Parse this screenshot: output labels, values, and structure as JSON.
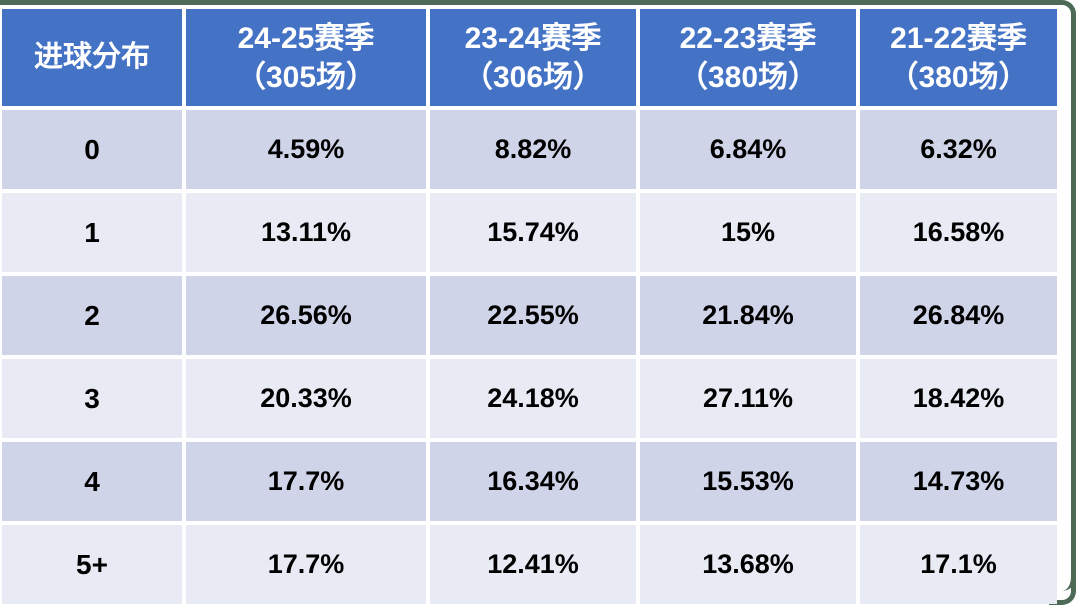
{
  "colors": {
    "header_bg": "#4472C4",
    "header_text": "#FFFFFF",
    "band_dark": "#CFD4E8",
    "band_light": "#E9EBF4",
    "body_text": "#000000",
    "frame_border": "#4D6A56",
    "gap_background": "#FFFFFF"
  },
  "table": {
    "corner_label": "进球分布",
    "columns": [
      {
        "season": "24-25赛季",
        "matches": "（305场）"
      },
      {
        "season": "23-24赛季",
        "matches": "（306场）"
      },
      {
        "season": "22-23赛季",
        "matches": "（380场）"
      },
      {
        "season": "21-22赛季",
        "matches": "（380场）"
      }
    ],
    "rows": [
      {
        "label": "0",
        "values": [
          "4.59%",
          "8.82%",
          "6.84%",
          "6.32%"
        ]
      },
      {
        "label": "1",
        "values": [
          "13.11%",
          "15.74%",
          "15%",
          "16.58%"
        ]
      },
      {
        "label": "2",
        "values": [
          "26.56%",
          "22.55%",
          "21.84%",
          "26.84%"
        ]
      },
      {
        "label": "3",
        "values": [
          "20.33%",
          "24.18%",
          "27.11%",
          "18.42%"
        ]
      },
      {
        "label": "4",
        "values": [
          "17.7%",
          "16.34%",
          "15.53%",
          "14.73%"
        ]
      },
      {
        "label": "5+",
        "values": [
          "17.7%",
          "12.41%",
          "13.68%",
          "17.1%"
        ]
      }
    ]
  },
  "chart_data": {
    "type": "table",
    "title": "进球分布",
    "columns": [
      "进球分布",
      "24-25赛季（305场）",
      "23-24赛季（306场）",
      "22-23赛季（380场）",
      "21-22赛季（380场）"
    ],
    "rows": [
      [
        "0",
        "4.59%",
        "8.82%",
        "6.84%",
        "6.32%"
      ],
      [
        "1",
        "13.11%",
        "15.74%",
        "15%",
        "16.58%"
      ],
      [
        "2",
        "26.56%",
        "22.55%",
        "21.84%",
        "26.84%"
      ],
      [
        "3",
        "20.33%",
        "24.18%",
        "27.11%",
        "18.42%"
      ],
      [
        "4",
        "17.7%",
        "16.34%",
        "15.53%",
        "14.73%"
      ],
      [
        "5+",
        "17.7%",
        "12.41%",
        "13.68%",
        "17.1%"
      ]
    ]
  }
}
